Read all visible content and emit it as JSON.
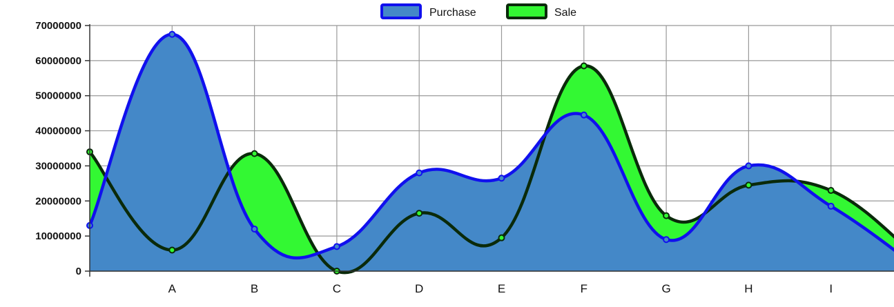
{
  "colors": {
    "purchase_fill": "#4488c8",
    "purchase_stroke": "#1010ee",
    "sale_fill": "#33f833",
    "sale_stroke": "#0a2a0a",
    "grid": "#999999",
    "axis": "#333333"
  },
  "chart_data": {
    "type": "area",
    "x": [
      "",
      "A",
      "B",
      "C",
      "D",
      "E",
      "F",
      "G",
      "H",
      "I",
      ""
    ],
    "series": [
      {
        "name": "Purchase",
        "values": [
          13000000,
          67500000,
          12000000,
          7000000,
          28000000,
          26500000,
          44500000,
          9000000,
          30000000,
          18500000,
          2000000
        ]
      },
      {
        "name": "Sale",
        "values": [
          34000000,
          6000000,
          33500000,
          0,
          16500000,
          9500000,
          58500000,
          15800000,
          24500000,
          23000000,
          5000000
        ]
      }
    ],
    "y_ticks": [
      "0",
      "10000000",
      "20000000",
      "30000000",
      "40000000",
      "50000000",
      "60000000",
      "70000000"
    ],
    "ylim": [
      0,
      70000000
    ],
    "grid": true,
    "legend": "top-center"
  }
}
